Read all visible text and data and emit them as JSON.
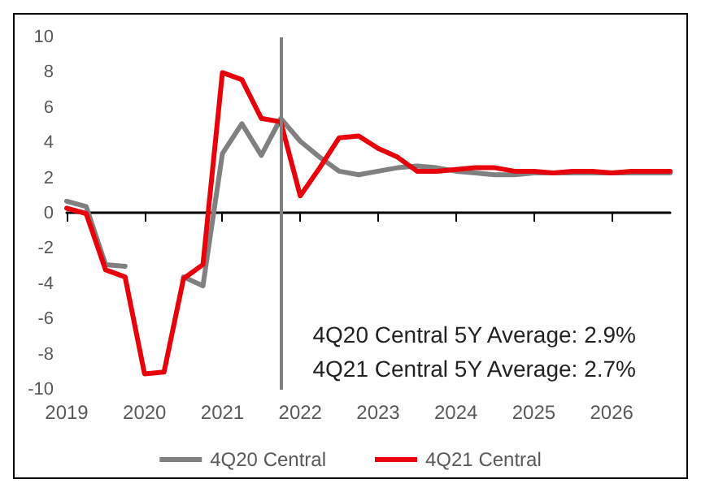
{
  "chart_data": {
    "type": "line",
    "x": [
      2019,
      2019.25,
      2019.5,
      2019.75,
      2020,
      2020.25,
      2020.5,
      2020.75,
      2021,
      2021.25,
      2021.5,
      2021.75,
      2022,
      2022.25,
      2022.5,
      2022.75,
      2023,
      2023.25,
      2023.5,
      2023.75,
      2024,
      2024.25,
      2024.5,
      2024.75,
      2025,
      2025.25,
      2025.5,
      2025.75,
      2026,
      2026.25,
      2026.5,
      2026.75
    ],
    "series": [
      {
        "name": "4Q20 Central",
        "color": "#808080",
        "values": [
          0.7,
          0.4,
          -2.9,
          -3.0,
          null,
          null,
          -3.6,
          -4.1,
          3.4,
          5.1,
          3.3,
          5.4,
          4.1,
          3.2,
          2.4,
          2.2,
          2.4,
          2.6,
          2.7,
          2.6,
          2.4,
          2.3,
          2.2,
          2.2,
          2.3,
          2.3,
          2.3,
          2.3,
          2.3,
          2.3,
          2.3,
          2.3
        ]
      },
      {
        "name": "4Q21 Central",
        "color": "#e8000b",
        "values": [
          0.3,
          0,
          -3.2,
          -3.6,
          -9.1,
          -9.0,
          -3.7,
          -2.9,
          8.0,
          7.6,
          5.4,
          5.2,
          1.0,
          2.6,
          4.3,
          4.4,
          3.7,
          3.2,
          2.4,
          2.4,
          2.5,
          2.6,
          2.6,
          2.4,
          2.4,
          2.3,
          2.4,
          2.4,
          2.3,
          2.4,
          2.4,
          2.4
        ]
      }
    ],
    "xlim": [
      2019,
      2026.75
    ],
    "xticks": [
      2019,
      2020,
      2021,
      2022,
      2023,
      2024,
      2025,
      2026
    ],
    "ylim": [
      -10,
      10
    ],
    "yticks": [
      -10,
      -8,
      -6,
      -4,
      -2,
      0,
      2,
      4,
      6,
      8,
      10
    ],
    "ref_lines": [
      {
        "axis": "x",
        "value": 2021.75,
        "color": "#808080"
      }
    ],
    "annotations": [
      "4Q20 Central 5Y Average: 2.9%",
      "4Q21 Central 5Y Average: 2.7%"
    ],
    "legend": "bottom",
    "marker": "none",
    "line_style": "solid"
  }
}
